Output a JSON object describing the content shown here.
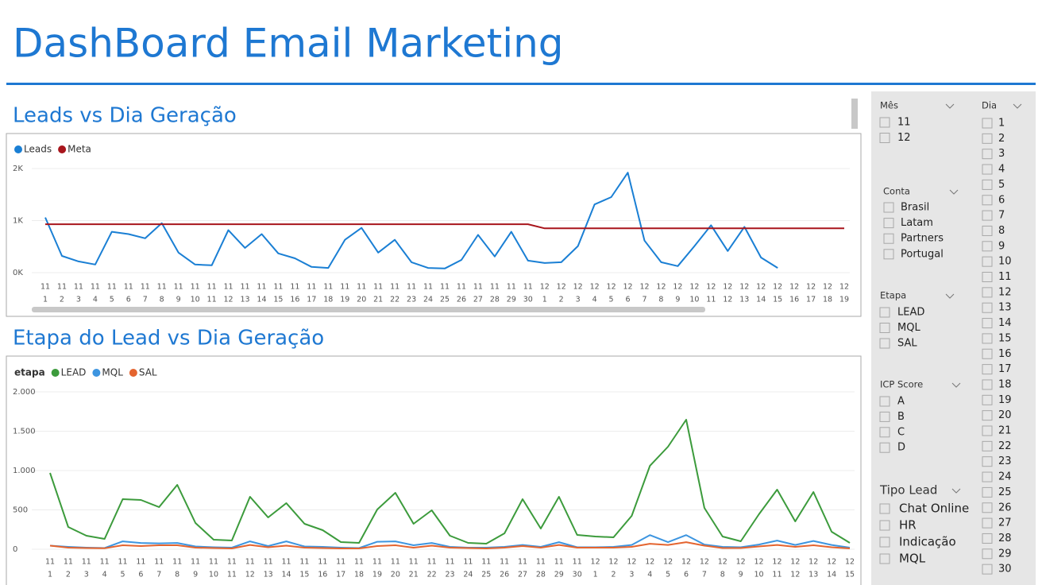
{
  "title": "DashBoard Email Marketing",
  "chart_data": [
    {
      "type": "line",
      "title": "Leads vs Dia Geração",
      "categories": [
        [
          "11",
          "1"
        ],
        [
          "11",
          "2"
        ],
        [
          "11",
          "3"
        ],
        [
          "11",
          "4"
        ],
        [
          "11",
          "5"
        ],
        [
          "11",
          "6"
        ],
        [
          "11",
          "7"
        ],
        [
          "11",
          "8"
        ],
        [
          "11",
          "9"
        ],
        [
          "11",
          "10"
        ],
        [
          "11",
          "11"
        ],
        [
          "11",
          "12"
        ],
        [
          "11",
          "13"
        ],
        [
          "11",
          "14"
        ],
        [
          "11",
          "15"
        ],
        [
          "11",
          "16"
        ],
        [
          "11",
          "17"
        ],
        [
          "11",
          "18"
        ],
        [
          "11",
          "19"
        ],
        [
          "11",
          "20"
        ],
        [
          "11",
          "21"
        ],
        [
          "11",
          "22"
        ],
        [
          "11",
          "23"
        ],
        [
          "11",
          "24"
        ],
        [
          "11",
          "25"
        ],
        [
          "11",
          "26"
        ],
        [
          "11",
          "27"
        ],
        [
          "11",
          "28"
        ],
        [
          "11",
          "29"
        ],
        [
          "11",
          "30"
        ],
        [
          "12",
          "1"
        ],
        [
          "12",
          "2"
        ],
        [
          "12",
          "3"
        ],
        [
          "12",
          "4"
        ],
        [
          "12",
          "5"
        ],
        [
          "12",
          "6"
        ],
        [
          "12",
          "7"
        ],
        [
          "12",
          "8"
        ],
        [
          "12",
          "9"
        ],
        [
          "12",
          "10"
        ],
        [
          "12",
          "11"
        ],
        [
          "12",
          "12"
        ],
        [
          "12",
          "13"
        ],
        [
          "12",
          "14"
        ],
        [
          "12",
          "15"
        ],
        [
          "12",
          "16"
        ],
        [
          "12",
          "17"
        ],
        [
          "12",
          "18"
        ],
        [
          "12",
          "19"
        ]
      ],
      "series": [
        {
          "name": "Leads",
          "color": "#1a7fd4",
          "values": [
            1060,
            320,
            215,
            155,
            785,
            740,
            660,
            950,
            385,
            155,
            140,
            815,
            475,
            740,
            370,
            275,
            110,
            90,
            630,
            860,
            385,
            630,
            200,
            90,
            80,
            245,
            725,
            310,
            785,
            230,
            185,
            200,
            510,
            1310,
            1450,
            1920,
            615,
            200,
            125,
            510,
            910,
            415,
            880,
            290,
            90,
            null,
            null,
            null,
            null
          ]
        },
        {
          "name": "Meta",
          "color": "#a8151c",
          "values": [
            930,
            930,
            930,
            930,
            930,
            930,
            930,
            930,
            930,
            930,
            930,
            930,
            930,
            930,
            930,
            930,
            930,
            930,
            930,
            930,
            930,
            930,
            930,
            930,
            930,
            930,
            930,
            930,
            930,
            930,
            850,
            850,
            850,
            850,
            850,
            850,
            850,
            850,
            850,
            850,
            850,
            850,
            850,
            850,
            850,
            850,
            850,
            850,
            850
          ]
        }
      ],
      "ylim": [
        0,
        2000
      ],
      "yticks": [
        {
          "value": 0,
          "label": "0K"
        },
        {
          "value": 1000,
          "label": "1K"
        },
        {
          "value": 2000,
          "label": "2K"
        }
      ],
      "grid": true
    },
    {
      "type": "line",
      "title": "Etapa do Lead vs Dia Geração",
      "legend_title": "etapa",
      "categories": [
        [
          "11",
          "1"
        ],
        [
          "11",
          "2"
        ],
        [
          "11",
          "3"
        ],
        [
          "11",
          "4"
        ],
        [
          "11",
          "5"
        ],
        [
          "11",
          "6"
        ],
        [
          "11",
          "7"
        ],
        [
          "11",
          "8"
        ],
        [
          "11",
          "9"
        ],
        [
          "11",
          "10"
        ],
        [
          "11",
          "11"
        ],
        [
          "11",
          "12"
        ],
        [
          "11",
          "13"
        ],
        [
          "11",
          "14"
        ],
        [
          "11",
          "15"
        ],
        [
          "11",
          "16"
        ],
        [
          "11",
          "17"
        ],
        [
          "11",
          "18"
        ],
        [
          "11",
          "19"
        ],
        [
          "11",
          "20"
        ],
        [
          "11",
          "21"
        ],
        [
          "11",
          "22"
        ],
        [
          "11",
          "23"
        ],
        [
          "11",
          "24"
        ],
        [
          "11",
          "25"
        ],
        [
          "11",
          "26"
        ],
        [
          "11",
          "27"
        ],
        [
          "11",
          "28"
        ],
        [
          "11",
          "29"
        ],
        [
          "11",
          "30"
        ],
        [
          "12",
          "1"
        ],
        [
          "12",
          "2"
        ],
        [
          "12",
          "3"
        ],
        [
          "12",
          "4"
        ],
        [
          "12",
          "5"
        ],
        [
          "12",
          "6"
        ],
        [
          "12",
          "7"
        ],
        [
          "12",
          "8"
        ],
        [
          "12",
          "9"
        ],
        [
          "12",
          "10"
        ],
        [
          "12",
          "11"
        ],
        [
          "12",
          "12"
        ],
        [
          "12",
          "13"
        ],
        [
          "12",
          "14"
        ],
        [
          "12",
          "15"
        ]
      ],
      "series": [
        {
          "name": "LEAD",
          "color": "#3c9b3c",
          "values": [
            970,
            283,
            172,
            131,
            636,
            626,
            535,
            818,
            333,
            121,
            111,
            667,
            404,
            586,
            323,
            242,
            91,
            81,
            505,
            717,
            323,
            495,
            172,
            81,
            71,
            202,
            636,
            263,
            667,
            182,
            162,
            152,
            424,
            1060,
            1303,
            1646,
            525,
            162,
            101,
            444,
            758,
            354,
            727,
            222,
            81
          ]
        },
        {
          "name": "MQL",
          "color": "#3d95e0",
          "values": [
            45,
            30,
            20,
            15,
            100,
            80,
            75,
            80,
            35,
            25,
            20,
            100,
            40,
            100,
            35,
            30,
            20,
            15,
            95,
            100,
            50,
            80,
            30,
            20,
            20,
            30,
            55,
            30,
            90,
            25,
            25,
            30,
            55,
            180,
            90,
            180,
            60,
            30,
            25,
            60,
            110,
            55,
            105,
            55,
            20
          ]
        },
        {
          "name": "SAL",
          "color": "#e4642f",
          "values": [
            45,
            20,
            15,
            12,
            50,
            40,
            50,
            50,
            20,
            15,
            10,
            55,
            25,
            45,
            20,
            15,
            10,
            10,
            40,
            50,
            20,
            45,
            20,
            15,
            10,
            20,
            40,
            20,
            55,
            20,
            20,
            20,
            30,
            70,
            55,
            90,
            45,
            15,
            15,
            35,
            55,
            30,
            50,
            25,
            10
          ]
        }
      ],
      "ylim": [
        0,
        2000
      ],
      "yticks": [
        0,
        500,
        {
          "value": 1000,
          "label": "1.000"
        },
        {
          "value": 1500,
          "label": "1.500"
        },
        {
          "value": 2000,
          "label": "2.000"
        }
      ],
      "grid": true
    }
  ],
  "slicers": [
    {
      "title": "Mês",
      "items": [
        "11",
        "12"
      ]
    },
    {
      "title": "Dia",
      "items": [
        "1",
        "2",
        "3",
        "4",
        "5",
        "6",
        "7",
        "8",
        "9",
        "10",
        "11",
        "12",
        "13",
        "14",
        "15",
        "16",
        "17",
        "18",
        "19",
        "20",
        "21",
        "22",
        "23",
        "24",
        "25",
        "26",
        "27",
        "28",
        "29",
        "30"
      ]
    },
    {
      "title": "Conta",
      "items": [
        "Brasil",
        "Latam",
        "Partners",
        "Portugal"
      ]
    },
    {
      "title": "Etapa",
      "items": [
        "LEAD",
        "MQL",
        "SAL"
      ]
    },
    {
      "title": "ICP Score",
      "items": [
        "A",
        "B",
        "C",
        "D"
      ]
    },
    {
      "title": "Tipo Lead",
      "items": [
        "Chat Online",
        "HR",
        "Indicação",
        "MQL"
      ]
    }
  ]
}
